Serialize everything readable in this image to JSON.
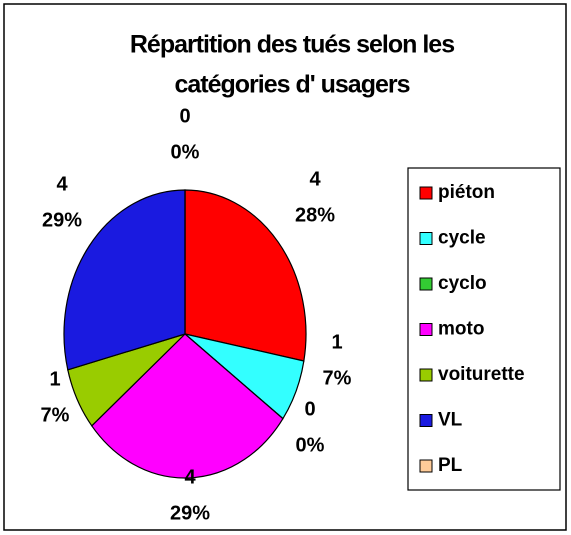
{
  "chart_data": {
    "type": "pie",
    "title": [
      "Répartition des tués selon les",
      "catégories d' usagers"
    ],
    "categories": [
      "piéton",
      "cycle",
      "cyclo",
      "moto",
      "voiturette",
      "VL",
      "PL"
    ],
    "values": [
      4,
      1,
      0,
      4,
      1,
      4,
      0
    ],
    "percentages": [
      28,
      7,
      0,
      29,
      7,
      29,
      0
    ],
    "percent_labels": [
      "28%",
      "7%",
      "0%",
      "29%",
      "7%",
      "29%",
      "0%"
    ],
    "colors": [
      "#ff0000",
      "#33ffff",
      "#33cc33",
      "#ff00ff",
      "#99cc00",
      "#1a1ae0",
      "#ffcc99"
    ],
    "legend": "right"
  }
}
